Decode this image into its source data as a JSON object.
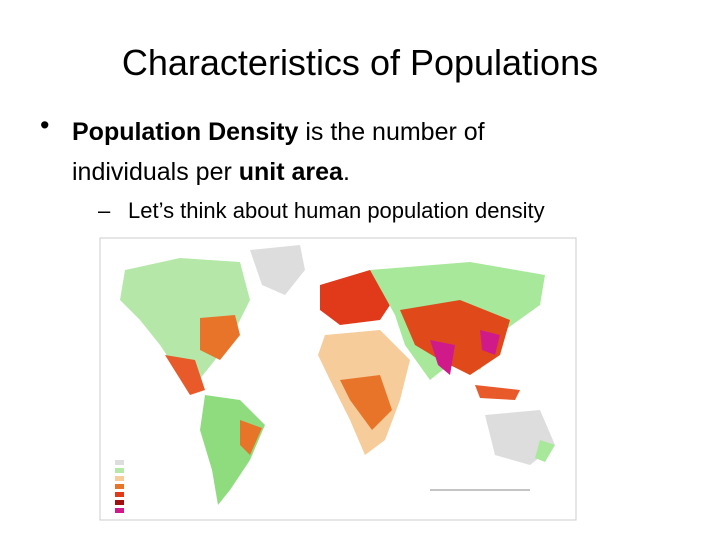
{
  "slide": {
    "title": "Characteristics of Populations",
    "bullets": [
      {
        "marker": "•",
        "runs": [
          {
            "text": "Population Density",
            "bold": true
          },
          {
            "text": " is the number of individuals per ",
            "bold": false
          },
          {
            "text": "unit area",
            "bold": true
          },
          {
            "text": ".",
            "bold": false
          }
        ]
      },
      {
        "marker": "–",
        "runs": [
          {
            "text": "Let’s think about human population density",
            "bold": false
          }
        ]
      }
    ]
  }
}
